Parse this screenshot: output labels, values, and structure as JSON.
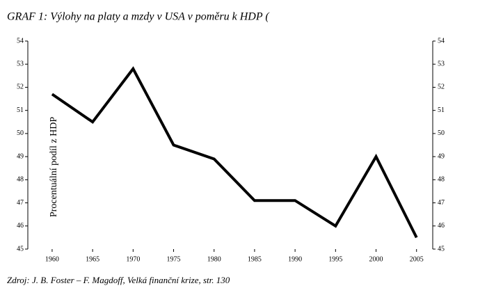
{
  "chart_data": {
    "type": "line",
    "title": "GRAF 1: Výlohy na platy a mzdy v USA v poměru k HDP (",
    "y_label": "Procentuální podíl z HDP",
    "source": "Zdroj: J. B. Foster – F. Magdoff, Velká finanční krize, str. 130",
    "x": [
      1960,
      1965,
      1970,
      1975,
      1980,
      1985,
      1990,
      1995,
      2000,
      2005
    ],
    "series": [
      {
        "color": "#000000",
        "values": [
          51.7,
          50.5,
          52.8,
          49.5,
          48.9,
          47.1,
          47.1,
          46.0,
          49.0,
          45.5
        ]
      }
    ],
    "xlim": [
      1957,
      2007
    ],
    "xticks": [
      1960,
      1965,
      1970,
      1975,
      1980,
      1985,
      1990,
      1995,
      2000,
      2005
    ],
    "ylim": [
      45,
      54
    ],
    "yticks": [
      45,
      46,
      47,
      48,
      49,
      50,
      51,
      52,
      53,
      54
    ],
    "y2lim": [
      45,
      54
    ],
    "y2ticks": [
      45,
      46,
      47,
      48,
      49,
      50,
      51,
      52,
      53,
      54
    ]
  }
}
